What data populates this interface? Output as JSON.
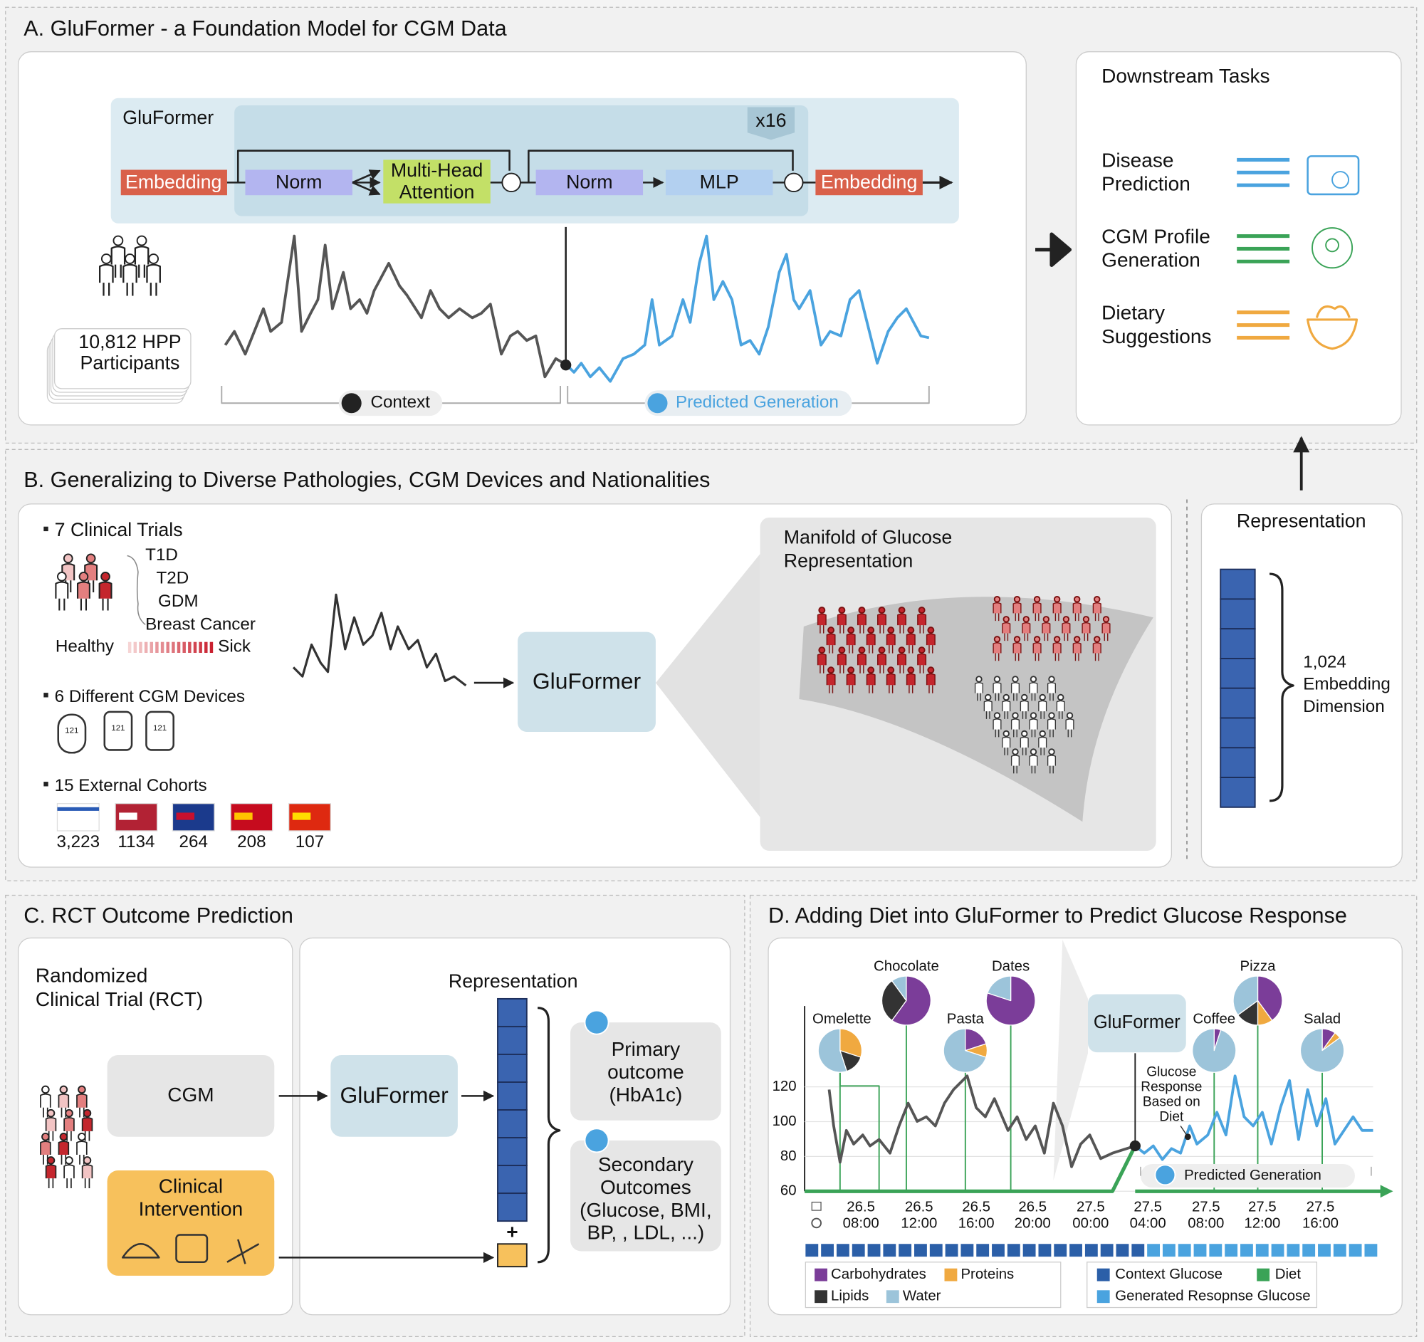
{
  "panel_a": {
    "title": "A. GluFormer - a Foundation Model for CGM Data",
    "model_name": "GluFormer",
    "repeat": "x16",
    "embedding_in": "Embedding",
    "norm_1": "Norm",
    "attention": [
      "Multi-Head",
      "Attention"
    ],
    "norm_2": "Norm",
    "mlp": "MLP",
    "embedding_out": "Embedding",
    "participants": [
      "10,812 HPP",
      "Participants"
    ],
    "context": "Context",
    "predicted": "Predicted Generation"
  },
  "downstream": {
    "title": "Downstream Tasks",
    "tasks": [
      [
        "Disease",
        "Prediction"
      ],
      [
        "CGM Profile",
        "Generation"
      ],
      [
        "Dietary",
        "Suggestions"
      ]
    ]
  },
  "panel_b": {
    "title": "B. Generalizing to Diverse Pathologies, CGM Devices and Nationalities",
    "clinical_trials": "7 Clinical Trials",
    "conditions": [
      "T1D",
      "T2D",
      "GDM",
      "Breast Cancer"
    ],
    "healthy": "Healthy",
    "sick": "Sick",
    "devices": "6 Different CGM Devices",
    "device_labels": [
      "121",
      "121",
      "121"
    ],
    "cohorts": "15 External Cohorts",
    "cohort_counts": [
      "3,223",
      "1134",
      "264",
      "208",
      "107"
    ],
    "model_name": "GluFormer",
    "manifold_title": [
      "Manifold of Glucose",
      "Representation"
    ]
  },
  "representation": {
    "title": "Representation",
    "dimension": [
      "1,024",
      "Embedding",
      "Dimension"
    ]
  },
  "panel_c": {
    "title": "C. RCT Outcome Prediction",
    "rct": [
      "Randomized",
      "Clinical Trial (RCT)"
    ],
    "cgm": "CGM",
    "intervention": [
      "Clinical",
      "Intervention"
    ],
    "model_name": "GluFormer",
    "representation": "Representation",
    "plus": "+",
    "primary": [
      "Primary",
      "outcome",
      "(HbA1c)"
    ],
    "secondary": [
      "Secondary",
      "Outcomes",
      "(Glucose, BMI,",
      "BP, , LDL, ...)"
    ]
  },
  "panel_d": {
    "title": "D. Adding Diet into GluFormer to Predict Glucose Response",
    "foods": [
      "Omelette",
      "Chocolate",
      "Pasta",
      "Dates",
      "Coffee",
      "Pizza",
      "Salad"
    ],
    "model_name": "GluFormer",
    "annotation": [
      "Glucose",
      "Response",
      "Based on",
      "Diet"
    ],
    "predicted": "Predicted Generation",
    "yticks": [
      120,
      100,
      80,
      60
    ],
    "xticks": [
      [
        "26.5",
        "08:00"
      ],
      [
        "26.5",
        "12:00"
      ],
      [
        "26.5",
        "16:00"
      ],
      [
        "26.5",
        "20:00"
      ],
      [
        "27.5",
        "00:00"
      ],
      [
        "27.5",
        "04:00"
      ],
      [
        "27.5",
        "08:00"
      ],
      [
        "27.5",
        "12:00"
      ],
      [
        "27.5",
        "16:00"
      ]
    ],
    "legend_nutrients": [
      "Carbohydrates",
      "Proteins",
      "Lipids",
      "Water"
    ],
    "legend_signals": [
      "Context Glucose",
      "Diet",
      "Generated Resopnse Glucose"
    ]
  }
}
